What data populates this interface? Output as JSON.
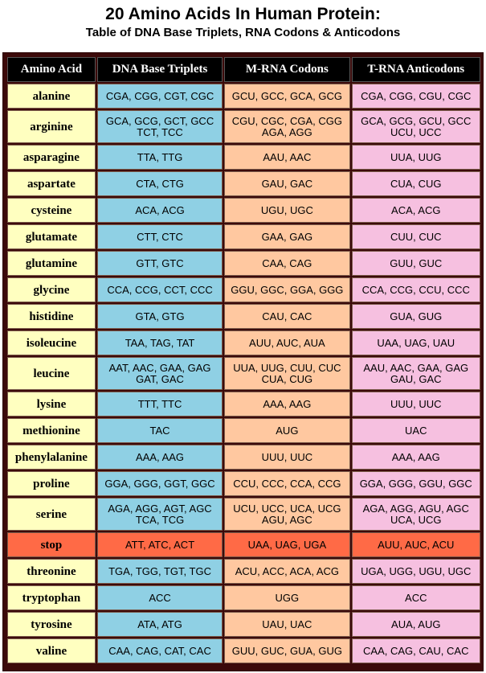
{
  "title": "20 Amino Acids In Human Protein:",
  "subtitle": "Table of DNA Base Triplets, RNA Codons & Anticodons",
  "headers": [
    "Amino Acid",
    "DNA Base Triplets",
    "M-RNA Codons",
    "T-RNA Anticodons"
  ],
  "rows": [
    {
      "name": "alanine",
      "dna": [
        "CGA, CGG, CGT, CGC"
      ],
      "mrna": [
        "GCU, GCC, GCA, GCG"
      ],
      "trna": [
        "CGA, CGG, CGU, CGC"
      ]
    },
    {
      "name": "arginine",
      "dna": [
        "GCA, GCG, GCT, GCC",
        "TCT, TCC"
      ],
      "mrna": [
        "CGU, CGC, CGA, CGG",
        "AGA, AGG"
      ],
      "trna": [
        "GCA, GCG, GCU, GCC",
        "UCU, UCC"
      ]
    },
    {
      "name": "asparagine",
      "dna": [
        "TTA, TTG"
      ],
      "mrna": [
        "AAU, AAC"
      ],
      "trna": [
        "UUA, UUG"
      ]
    },
    {
      "name": "aspartate",
      "dna": [
        "CTA, CTG"
      ],
      "mrna": [
        "GAU, GAC"
      ],
      "trna": [
        "CUA, CUG"
      ]
    },
    {
      "name": "cysteine",
      "dna": [
        "ACA, ACG"
      ],
      "mrna": [
        "UGU, UGC"
      ],
      "trna": [
        "ACA, ACG"
      ]
    },
    {
      "name": "glutamate",
      "dna": [
        "CTT, CTC"
      ],
      "mrna": [
        "GAA, GAG"
      ],
      "trna": [
        "CUU, CUC"
      ]
    },
    {
      "name": "glutamine",
      "dna": [
        "GTT, GTC"
      ],
      "mrna": [
        "CAA, CAG"
      ],
      "trna": [
        "GUU, GUC"
      ]
    },
    {
      "name": "glycine",
      "dna": [
        "CCA, CCG, CCT, CCC"
      ],
      "mrna": [
        "GGU, GGC, GGA, GGG"
      ],
      "trna": [
        "CCA, CCG, CCU, CCC"
      ]
    },
    {
      "name": "histidine",
      "dna": [
        "GTA, GTG"
      ],
      "mrna": [
        "CAU, CAC"
      ],
      "trna": [
        "GUA, GUG"
      ]
    },
    {
      "name": "isoleucine",
      "dna": [
        "TAA, TAG, TAT"
      ],
      "mrna": [
        "AUU, AUC, AUA"
      ],
      "trna": [
        "UAA, UAG, UAU"
      ]
    },
    {
      "name": "leucine",
      "dna": [
        "AAT, AAC, GAA, GAG",
        "GAT, GAC"
      ],
      "mrna": [
        "UUA, UUG, CUU, CUC",
        "CUA, CUG"
      ],
      "trna": [
        "AAU, AAC, GAA, GAG",
        "GAU, GAC"
      ]
    },
    {
      "name": "lysine",
      "dna": [
        "TTT, TTC"
      ],
      "mrna": [
        "AAA, AAG"
      ],
      "trna": [
        "UUU, UUC"
      ]
    },
    {
      "name": "methionine",
      "dna": [
        "TAC"
      ],
      "mrna": [
        "AUG"
      ],
      "trna": [
        "UAC"
      ]
    },
    {
      "name": "phenylalanine",
      "dna": [
        "AAA, AAG"
      ],
      "mrna": [
        "UUU, UUC"
      ],
      "trna": [
        "AAA, AAG"
      ]
    },
    {
      "name": "proline",
      "dna": [
        "GGA, GGG, GGT, GGC"
      ],
      "mrna": [
        "CCU, CCC, CCA, CCG"
      ],
      "trna": [
        "GGA, GGG, GGU, GGC"
      ]
    },
    {
      "name": "serine",
      "dna": [
        "AGA, AGG, AGT, AGC",
        "TCA, TCG"
      ],
      "mrna": [
        "UCU, UCC, UCA, UCG",
        "AGU, AGC"
      ],
      "trna": [
        "AGA, AGG, AGU, AGC",
        "UCA, UCG"
      ]
    },
    {
      "name": "stop",
      "stop": true,
      "dna": [
        "ATT, ATC, ACT"
      ],
      "mrna": [
        "UAA, UAG, UGA"
      ],
      "trna": [
        "AUU, AUC, ACU"
      ]
    },
    {
      "name": "threonine",
      "dna": [
        "TGA, TGG, TGT, TGC"
      ],
      "mrna": [
        "ACU, ACC, ACA, ACG"
      ],
      "trna": [
        "UGA, UGG, UGU, UGC"
      ]
    },
    {
      "name": "tryptophan",
      "dna": [
        "ACC"
      ],
      "mrna": [
        "UGG"
      ],
      "trna": [
        "ACC"
      ]
    },
    {
      "name": "tyrosine",
      "dna": [
        "ATA, ATG"
      ],
      "mrna": [
        "UAU, UAC"
      ],
      "trna": [
        "AUA, AUG"
      ]
    },
    {
      "name": "valine",
      "dna": [
        "CAA, CAG, CAT, CAC"
      ],
      "mrna": [
        "GUU, GUC, GUA, GUG"
      ],
      "trna": [
        "CAA, CAG, CAU, CAC"
      ]
    }
  ]
}
